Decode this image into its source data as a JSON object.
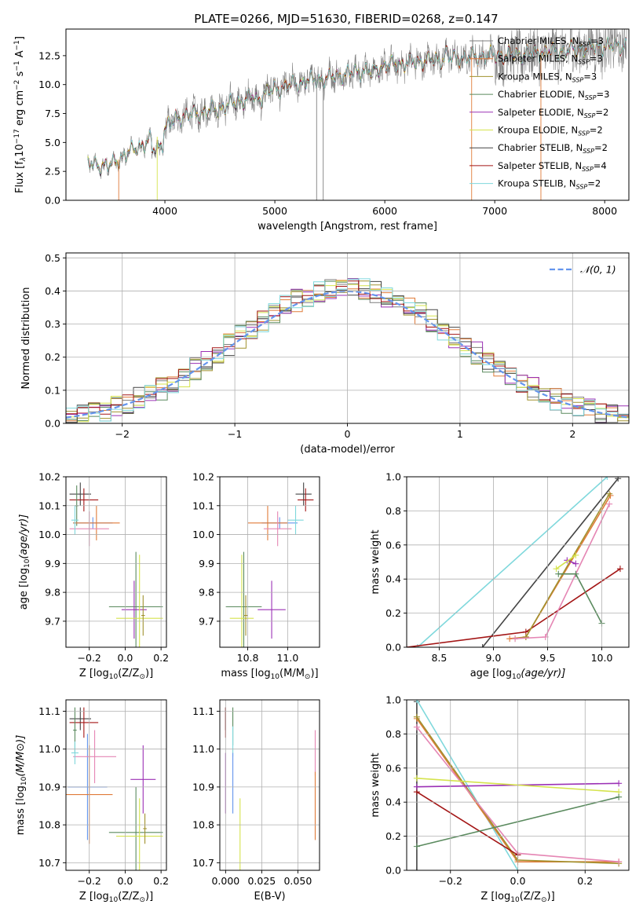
{
  "figure_title": "PLATE=0266, MJD=51630, FIBERID=0268, z=0.147",
  "series": [
    {
      "name": "Chabrier MILES, N_SSP=3",
      "label_main": "Chabrier MILES, N",
      "label_sub": "SSP",
      "label_tail": "=3",
      "color": "#7f7f7f"
    },
    {
      "name": "Salpeter MILES, N_SSP=3",
      "label_main": "Salpeter MILES, N",
      "label_sub": "SSP",
      "label_tail": "=3",
      "color": "#e07b39"
    },
    {
      "name": "Kroupa MILES, N_SSP=3",
      "label_main": "Kroupa MILES, N",
      "label_sub": "SSP",
      "label_tail": "=3",
      "color": "#a1922f"
    },
    {
      "name": "Chabrier ELODIE, N_SSP=3",
      "label_main": "Chabrier ELODIE, N",
      "label_sub": "SSP",
      "label_tail": "=3",
      "color": "#5a8a5e"
    },
    {
      "name": "Salpeter ELODIE, N_SSP=2",
      "label_main": "Salpeter ELODIE, N",
      "label_sub": "SSP",
      "label_tail": "=2",
      "color": "#9b30b5"
    },
    {
      "name": "Kroupa ELODIE, N_SSP=2",
      "label_main": "Kroupa ELODIE, N",
      "label_sub": "SSP",
      "label_tail": "=2",
      "color": "#d5e34d"
    },
    {
      "name": "Chabrier STELIB, N_SSP=2",
      "label_main": "Chabrier STELIB, N",
      "label_sub": "SSP",
      "label_tail": "=2",
      "color": "#444444"
    },
    {
      "name": "Salpeter STELIB, N_SSP=4",
      "label_main": "Salpeter STELIB, N",
      "label_sub": "SSP",
      "label_tail": "=4",
      "color": "#a31515"
    },
    {
      "name": "Kroupa STELIB, N_SSP=2",
      "label_main": "Kroupa STELIB, N",
      "label_sub": "SSP",
      "label_tail": "=2",
      "color": "#7fd8dc"
    }
  ],
  "extra_colors": {
    "blue": "#6495ed",
    "pink": "#e586b4"
  },
  "chart_data": [
    {
      "id": "spectrum",
      "type": "line",
      "xlabel": "wavelength [Angstrom, rest frame]",
      "ylabel_parts": [
        "Flux [f",
        "λ",
        "10",
        "−17",
        " erg cm",
        "−2",
        " s",
        "−1",
        " A",
        "−1",
        "]"
      ],
      "xlim": [
        3100,
        8220
      ],
      "ylim": [
        0,
        14.8
      ],
      "xticks": [
        4000,
        5000,
        6000,
        7000,
        8000
      ],
      "yticks": [
        0.0,
        2.5,
        5.0,
        7.5,
        10.0,
        12.5
      ],
      "ytick_labels": [
        "0.0",
        "2.5",
        "5.0",
        "7.5",
        "10.0",
        "12.5"
      ],
      "data_range": [
        3300,
        8200
      ],
      "continuum": [
        [
          3300,
          3.1
        ],
        [
          3500,
          3.0
        ],
        [
          3700,
          4.3
        ],
        [
          3950,
          5.6
        ],
        [
          4100,
          7.1
        ],
        [
          4400,
          7.7
        ],
        [
          4700,
          8.6
        ],
        [
          5000,
          9.6
        ],
        [
          5300,
          10.3
        ],
        [
          5600,
          10.8
        ],
        [
          6000,
          11.6
        ],
        [
          6400,
          12.1
        ],
        [
          6800,
          12.4
        ],
        [
          7200,
          12.6
        ],
        [
          7600,
          12.9
        ],
        [
          8000,
          13.3
        ],
        [
          8200,
          13.4
        ]
      ],
      "vertical_drops": [
        3580,
        3930,
        5380,
        5440,
        6790,
        7420
      ]
    },
    {
      "id": "residuals",
      "type": "step",
      "xlabel": "(data-model)/error",
      "ylabel": "Normed distribution",
      "xlim": [
        -2.5,
        2.5
      ],
      "ylim": [
        0,
        0.515
      ],
      "xticks": [
        -2,
        -1,
        0,
        1,
        2
      ],
      "xtick_labels": [
        "−2",
        "−1",
        "0",
        "1",
        "2"
      ],
      "yticks": [
        0.0,
        0.1,
        0.2,
        0.3,
        0.4,
        0.5
      ],
      "ytick_labels": [
        "0.0",
        "0.1",
        "0.2",
        "0.3",
        "0.4",
        "0.5"
      ],
      "grid": true,
      "bin_width": 0.1,
      "curve_label": "𝒩(0, 1)",
      "curve_color": "#6495ed",
      "legend_loc": "upper-right"
    },
    {
      "id": "age-vs-Z",
      "type": "errorbar",
      "xlabel_main": "Z [log",
      "xlabel_sub": "10",
      "xlabel_tail": "(Z/Z",
      "ylabel": "age  [log10(age/yr)]",
      "xlim": [
        -0.33,
        0.23
      ],
      "ylim": [
        9.61,
        10.2
      ],
      "xticks": [
        -0.2,
        0.0,
        0.2
      ],
      "xtick_labels": [
        "−0.2",
        "0.0",
        "0.2"
      ],
      "yticks": [
        9.7,
        9.8,
        9.9,
        10.0,
        10.1,
        10.2
      ],
      "ytick_labels": [
        "9.7",
        "9.8",
        "9.9",
        "10.0",
        "10.1",
        "10.2"
      ],
      "grid": true,
      "points": [
        {
          "x": -0.25,
          "y": 10.14,
          "xerr": 0.06,
          "yerr": 0.04,
          "color": "#444444"
        },
        {
          "x": -0.23,
          "y": 10.12,
          "xerr": 0.08,
          "yerr": 0.04,
          "color": "#a31515"
        },
        {
          "x": -0.27,
          "y": 10.1,
          "xerr": 0.01,
          "yerr": 0.07,
          "color": "#5a8a5e"
        },
        {
          "x": -0.18,
          "y": 10.04,
          "xerr": 0.11,
          "yerr": 0.02,
          "color": "#6495ed"
        },
        {
          "x": -0.16,
          "y": 10.04,
          "xerr": 0.13,
          "yerr": 0.06,
          "color": "#e07b39"
        },
        {
          "x": -0.2,
          "y": 10.02,
          "xerr": 0.11,
          "yerr": 0.06,
          "color": "#e586b4"
        },
        {
          "x": -0.28,
          "y": 10.05,
          "xerr": 0.02,
          "yerr": 0.05,
          "color": "#7fd8dc"
        },
        {
          "x": 0.06,
          "y": 9.75,
          "xerr": 0.15,
          "yerr": 0.19,
          "color": "#5a8a5e"
        },
        {
          "x": 0.05,
          "y": 9.74,
          "xerr": 0.07,
          "yerr": 0.1,
          "color": "#9b30b5"
        },
        {
          "x": 0.08,
          "y": 9.71,
          "xerr": 0.13,
          "yerr": 0.22,
          "color": "#d5e34d"
        },
        {
          "x": 0.1,
          "y": 9.72,
          "xerr": 0.01,
          "yerr": 0.07,
          "color": "#a1922f"
        }
      ]
    },
    {
      "id": "age-vs-mass",
      "type": "errorbar",
      "xlabel_main": "mass [log",
      "xlabel_sub": "10",
      "xlabel_tail": "(M/M",
      "ylabel": "",
      "xlim": [
        10.66,
        11.16
      ],
      "ylim": [
        9.61,
        10.2
      ],
      "xticks": [
        10.8,
        11.0
      ],
      "xtick_labels": [
        "10.8",
        "11.0"
      ],
      "yticks": [
        9.7,
        9.8,
        9.9,
        10.0,
        10.1,
        10.2
      ],
      "ytick_labels": [
        "9.7",
        "9.8",
        "9.9",
        "10.0",
        "10.1",
        "10.2"
      ],
      "grid": true,
      "points": [
        {
          "x": 11.08,
          "y": 10.14,
          "xerr": 0.04,
          "yerr": 0.04,
          "color": "#444444"
        },
        {
          "x": 11.09,
          "y": 10.12,
          "xerr": 0.04,
          "yerr": 0.04,
          "color": "#a31515"
        },
        {
          "x": 10.96,
          "y": 10.04,
          "xerr": 0.09,
          "yerr": 0.02,
          "color": "#6495ed"
        },
        {
          "x": 10.9,
          "y": 10.04,
          "xerr": 0.1,
          "yerr": 0.06,
          "color": "#e07b39"
        },
        {
          "x": 10.95,
          "y": 10.02,
          "xerr": 0.07,
          "yerr": 0.06,
          "color": "#e586b4"
        },
        {
          "x": 11.04,
          "y": 10.05,
          "xerr": 0.04,
          "yerr": 0.05,
          "color": "#7fd8dc"
        },
        {
          "x": 10.78,
          "y": 9.75,
          "xerr": 0.09,
          "yerr": 0.19,
          "color": "#5a8a5e"
        },
        {
          "x": 10.92,
          "y": 9.74,
          "xerr": 0.07,
          "yerr": 0.1,
          "color": "#9b30b5"
        },
        {
          "x": 10.77,
          "y": 9.71,
          "xerr": 0.06,
          "yerr": 0.22,
          "color": "#d5e34d"
        },
        {
          "x": 10.79,
          "y": 9.72,
          "xerr": 0.01,
          "yerr": 0.07,
          "color": "#a1922f"
        }
      ]
    },
    {
      "id": "weight-vs-age",
      "type": "line",
      "xlabel": "age  [log10(age/yr)]",
      "ylabel": "mass weight",
      "xlim": [
        8.2,
        10.25
      ],
      "ylim": [
        0,
        1
      ],
      "xticks": [
        8.5,
        9.0,
        9.5,
        10.0
      ],
      "xtick_labels": [
        "8.5",
        "9.0",
        "9.5",
        "10.0"
      ],
      "yticks": [
        0.0,
        0.2,
        0.4,
        0.6,
        0.8,
        1.0
      ],
      "ytick_labels": [
        "0.0",
        "0.2",
        "0.4",
        "0.6",
        "0.8",
        "1.0"
      ],
      "grid": true,
      "lines": [
        {
          "color": "#7fd8dc",
          "pts": [
            [
              8.3,
              0.0
            ],
            [
              10.05,
              1.0
            ]
          ]
        },
        {
          "color": "#444444",
          "pts": [
            [
              8.9,
              0.0
            ],
            [
              10.15,
              0.99
            ]
          ]
        },
        {
          "color": "#a31515",
          "pts": [
            [
              8.2,
              0.0
            ],
            [
              9.3,
              0.09
            ],
            [
              10.17,
              0.46
            ]
          ]
        },
        {
          "color": "#e07b39",
          "pts": [
            [
              9.15,
              0.05
            ],
            [
              9.3,
              0.06
            ],
            [
              10.08,
              0.89
            ]
          ]
        },
        {
          "color": "#a1922f",
          "pts": [
            [
              9.2,
              0.05
            ],
            [
              9.3,
              0.06
            ],
            [
              10.07,
              0.9
            ]
          ]
        },
        {
          "color": "#e586b4",
          "pts": [
            [
              9.2,
              0.05
            ],
            [
              9.48,
              0.06
            ],
            [
              10.07,
              0.84
            ]
          ]
        },
        {
          "color": "#5a8a5e",
          "pts": [
            [
              9.6,
              0.43
            ],
            [
              9.76,
              0.43
            ],
            [
              10.0,
              0.14
            ]
          ]
        },
        {
          "color": "#9b30b5",
          "pts": [
            [
              9.68,
              0.51
            ],
            [
              9.76,
              0.49
            ]
          ]
        },
        {
          "color": "#d5e34d",
          "pts": [
            [
              9.58,
              0.46
            ],
            [
              9.76,
              0.54
            ]
          ]
        }
      ]
    },
    {
      "id": "mass-vs-Z",
      "type": "errorbar",
      "xlabel_main": "Z [log",
      "xlabel_sub": "10",
      "xlabel_tail": "(Z/Z",
      "ylabel": "mass [log10(M/M⊙)]",
      "xlim": [
        -0.33,
        0.23
      ],
      "ylim": [
        10.68,
        11.13
      ],
      "xticks": [
        -0.2,
        0.0,
        0.2
      ],
      "xtick_labels": [
        "−0.2",
        "0.0",
        "0.2"
      ],
      "yticks": [
        10.7,
        10.8,
        10.9,
        11.0,
        11.1
      ],
      "ytick_labels": [
        "10.7",
        "10.8",
        "10.9",
        "11.0",
        "11.1"
      ],
      "grid": true,
      "points": [
        {
          "x": -0.25,
          "y": 11.08,
          "xerr": 0.06,
          "yerr": 0.03,
          "color": "#444444"
        },
        {
          "x": -0.23,
          "y": 11.07,
          "xerr": 0.08,
          "yerr": 0.04,
          "color": "#a31515"
        },
        {
          "x": -0.28,
          "y": 11.05,
          "xerr": 0.01,
          "yerr": 0.06,
          "color": "#5a8a5e"
        },
        {
          "x": -0.21,
          "y": 10.9,
          "xerr": 0.11,
          "yerr": 0.14,
          "color": "#6495ed"
        },
        {
          "x": -0.2,
          "y": 10.88,
          "xerr": 0.13,
          "yerr": 0.13,
          "color": "#e07b39"
        },
        {
          "x": -0.17,
          "y": 10.98,
          "xerr": 0.12,
          "yerr": 0.07,
          "color": "#e586b4"
        },
        {
          "x": -0.28,
          "y": 10.99,
          "xerr": 0.02,
          "yerr": 0.03,
          "color": "#7fd8dc"
        },
        {
          "x": 0.06,
          "y": 10.78,
          "xerr": 0.15,
          "yerr": 0.12,
          "color": "#5a8a5e"
        },
        {
          "x": 0.1,
          "y": 10.92,
          "xerr": 0.07,
          "yerr": 0.09,
          "color": "#9b30b5"
        },
        {
          "x": 0.08,
          "y": 10.77,
          "xerr": 0.13,
          "yerr": 0.1,
          "color": "#d5e34d"
        },
        {
          "x": 0.11,
          "y": 10.79,
          "xerr": 0.01,
          "yerr": 0.04,
          "color": "#a1922f"
        }
      ]
    },
    {
      "id": "mass-vs-EBV",
      "type": "errorbar",
      "xlabel": "E(B-V)",
      "ylabel": "",
      "xlim": [
        -0.004,
        0.065
      ],
      "ylim": [
        10.68,
        11.13
      ],
      "xticks": [
        0.0,
        0.025,
        0.05
      ],
      "xtick_labels": [
        "0.000",
        "0.025",
        "0.050"
      ],
      "yticks": [
        10.7,
        10.8,
        10.9,
        11.0,
        11.1
      ],
      "ytick_labels": [
        "10.7",
        "10.8",
        "10.9",
        "11.0",
        "11.1"
      ],
      "grid": true,
      "points": [
        {
          "x": 0.0,
          "y": 11.08,
          "xerr": 0,
          "yerr": 0.03,
          "color": "#444444"
        },
        {
          "x": 0.0,
          "y": 11.07,
          "xerr": 0,
          "yerr": 0.04,
          "color": "#a31515"
        },
        {
          "x": 0.0,
          "y": 10.91,
          "xerr": 0,
          "yerr": 0.08,
          "color": "#9b30b5"
        },
        {
          "x": 0.005,
          "y": 11.06,
          "xerr": 0,
          "yerr": 0.05,
          "color": "#5a8a5e"
        },
        {
          "x": 0.005,
          "y": 11.02,
          "xerr": 0,
          "yerr": 0.04,
          "color": "#7fd8dc"
        },
        {
          "x": 0.005,
          "y": 10.91,
          "xerr": 0,
          "yerr": 0.08,
          "color": "#6495ed"
        },
        {
          "x": 0.01,
          "y": 10.77,
          "xerr": 0,
          "yerr": 0.1,
          "color": "#d5e34d"
        },
        {
          "x": 0.062,
          "y": 10.99,
          "xerr": 0,
          "yerr": 0.06,
          "color": "#e586b4"
        },
        {
          "x": 0.062,
          "y": 10.85,
          "xerr": 0,
          "yerr": 0.09,
          "color": "#e07b39"
        }
      ]
    },
    {
      "id": "weight-vs-Z",
      "type": "line",
      "xlabel_main": "Z [log",
      "xlabel_sub": "10",
      "xlabel_tail": "(Z/Z",
      "ylabel": "mass weight",
      "xlim": [
        -0.33,
        0.33
      ],
      "ylim": [
        0,
        1
      ],
      "xticks": [
        -0.2,
        0.0,
        0.2
      ],
      "xtick_labels": [
        "−0.2",
        "0.0",
        "0.2"
      ],
      "yticks": [
        0.0,
        0.2,
        0.4,
        0.6,
        0.8,
        1.0
      ],
      "ytick_labels": [
        "0.0",
        "0.2",
        "0.4",
        "0.6",
        "0.8",
        "1.0"
      ],
      "grid": true,
      "lines": [
        {
          "color": "#444444",
          "pts": [
            [
              -0.3,
              0.0
            ],
            [
              -0.3,
              0.99
            ]
          ]
        },
        {
          "color": "#7fd8dc",
          "pts": [
            [
              -0.3,
              1.0
            ],
            [
              0.0,
              0.0
            ]
          ]
        },
        {
          "color": "#e07b39",
          "pts": [
            [
              -0.3,
              0.89
            ],
            [
              0.0,
              0.05
            ],
            [
              0.3,
              0.05
            ]
          ]
        },
        {
          "color": "#a1922f",
          "pts": [
            [
              -0.3,
              0.9
            ],
            [
              0.0,
              0.06
            ],
            [
              0.3,
              0.04
            ]
          ]
        },
        {
          "color": "#e586b4",
          "pts": [
            [
              -0.3,
              0.84
            ],
            [
              0.0,
              0.1
            ],
            [
              0.3,
              0.05
            ]
          ]
        },
        {
          "color": "#a31515",
          "pts": [
            [
              -0.3,
              0.46
            ],
            [
              0.0,
              0.09
            ]
          ]
        },
        {
          "color": "#9b30b5",
          "pts": [
            [
              -0.3,
              0.49
            ],
            [
              0.3,
              0.51
            ]
          ]
        },
        {
          "color": "#d5e34d",
          "pts": [
            [
              -0.3,
              0.54
            ],
            [
              0.3,
              0.46
            ]
          ]
        },
        {
          "color": "#5a8a5e",
          "pts": [
            [
              -0.3,
              0.14
            ],
            [
              0.3,
              0.43
            ]
          ]
        }
      ]
    }
  ]
}
